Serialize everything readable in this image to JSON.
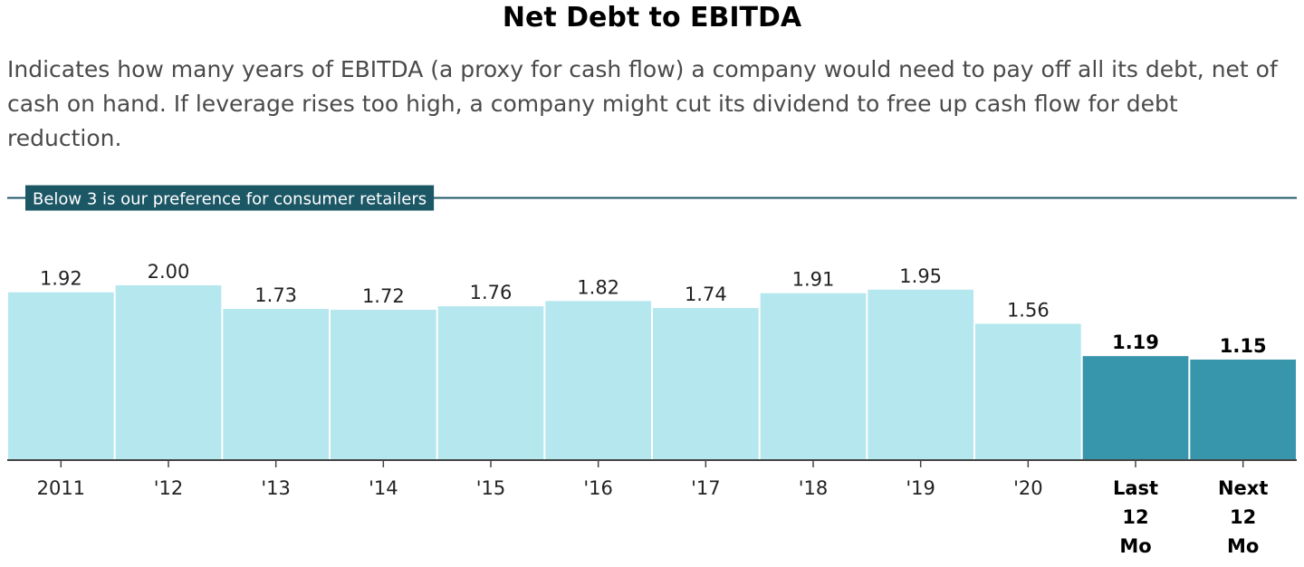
{
  "header": {
    "title": "Net Debt to EBITDA",
    "description": "Indicates how many years of EBITDA (a proxy for cash flow) a company would need to pay off all its debt, net of cash on hand. If leverage rises too high, a company might cut its dividend to free up cash flow for debt reduction."
  },
  "chart_data": {
    "type": "bar",
    "title": "Net Debt to EBITDA",
    "xlabel": "",
    "ylabel": "",
    "categories": [
      "2011",
      "'12",
      "'13",
      "'14",
      "'15",
      "'16",
      "'17",
      "'18",
      "'19",
      "'20",
      "Last 12 Mo",
      "Next 12 Mo"
    ],
    "category_lines": [
      [
        "2011"
      ],
      [
        "'12"
      ],
      [
        "'13"
      ],
      [
        "'14"
      ],
      [
        "'15"
      ],
      [
        "'16"
      ],
      [
        "'17"
      ],
      [
        "'18"
      ],
      [
        "'19"
      ],
      [
        "'20"
      ],
      [
        "Last",
        "12",
        "Mo"
      ],
      [
        "Next",
        "12",
        "Mo"
      ]
    ],
    "values": [
      1.92,
      2.0,
      1.73,
      1.72,
      1.76,
      1.82,
      1.74,
      1.91,
      1.95,
      1.56,
      1.19,
      1.15
    ],
    "value_labels": [
      "1.92",
      "2.00",
      "1.73",
      "1.72",
      "1.76",
      "1.82",
      "1.74",
      "1.91",
      "1.95",
      "1.56",
      "1.19",
      "1.15"
    ],
    "highlighted": [
      false,
      false,
      false,
      false,
      false,
      false,
      false,
      false,
      false,
      false,
      true,
      true
    ],
    "ylim": [
      0,
      3.2
    ],
    "reference_line": {
      "value": 3,
      "label": "Below 3 is our preference for consumer retailers"
    },
    "colors": {
      "bar": "#b5e7ee",
      "bar_highlight": "#3796ab",
      "reference": "#1c5766",
      "axis": "#444444"
    },
    "grid": false,
    "legend": "none"
  }
}
